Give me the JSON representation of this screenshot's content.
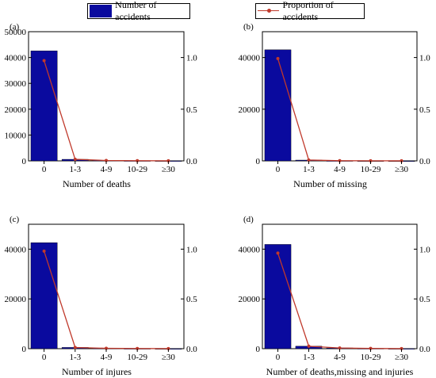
{
  "legend": {
    "bar_label": "Number of accidents",
    "line_label": "Proportion of accidents"
  },
  "colors": {
    "bar": "#0a0a9e",
    "line": "#c0392b"
  },
  "chart_data": [
    {
      "type": "bar",
      "panel": "(a)",
      "xlabel": "Number of  deaths",
      "categories": [
        "0",
        "1-3",
        "4-9",
        "10-29",
        "≥30"
      ],
      "series": [
        {
          "name": "Number of accidents",
          "axis": "left",
          "values": [
            42600,
            600,
            150,
            80,
            50
          ]
        },
        {
          "name": "Proportion of accidents",
          "axis": "right",
          "type": "line",
          "values": [
            0.97,
            0.015,
            0.004,
            0.002,
            0.001
          ]
        }
      ],
      "y_left": {
        "lim": [
          0,
          50000
        ],
        "ticks": [
          0,
          10000,
          20000,
          30000,
          40000,
          50000
        ]
      },
      "y_right": {
        "lim": [
          0,
          1.25
        ],
        "ticks": [
          "0.0",
          "0.5",
          "1.0"
        ]
      }
    },
    {
      "type": "bar",
      "panel": "(b)",
      "xlabel": "Number of missing",
      "categories": [
        "0",
        "1-3",
        "4-9",
        "10-29",
        "≥30"
      ],
      "series": [
        {
          "name": "Number of accidents",
          "axis": "left",
          "values": [
            43000,
            300,
            80,
            40,
            20
          ]
        },
        {
          "name": "Proportion of accidents",
          "axis": "right",
          "type": "line",
          "values": [
            0.99,
            0.008,
            0.002,
            0.001,
            0.0005
          ]
        }
      ],
      "y_left": {
        "lim": [
          0,
          50000
        ],
        "ticks": [
          0,
          20000,
          40000
        ]
      },
      "y_right": {
        "lim": [
          0,
          1.25
        ],
        "ticks": [
          "0.0",
          "0.5",
          "1.0"
        ]
      }
    },
    {
      "type": "bar",
      "panel": "(c)",
      "xlabel": "Number of injures",
      "categories": [
        "0",
        "1-3",
        "4-9",
        "10-29",
        "≥30"
      ],
      "series": [
        {
          "name": "Number of accidents",
          "axis": "left",
          "values": [
            42600,
            500,
            150,
            80,
            40
          ]
        },
        {
          "name": "Proportion of accidents",
          "axis": "right",
          "type": "line",
          "values": [
            0.98,
            0.012,
            0.004,
            0.002,
            0.001
          ]
        }
      ],
      "y_left": {
        "lim": [
          0,
          50000
        ],
        "ticks": [
          0,
          20000,
          40000
        ]
      },
      "y_right": {
        "lim": [
          0,
          1.25
        ],
        "ticks": [
          "0.0",
          "0.5",
          "1.0"
        ]
      }
    },
    {
      "type": "bar",
      "panel": "(d)",
      "xlabel": "Number of deaths,missing and injuries",
      "categories": [
        "0",
        "1-3",
        "4-9",
        "10-29",
        "≥30"
      ],
      "series": [
        {
          "name": "Number of accidents",
          "axis": "left",
          "values": [
            41900,
            1000,
            300,
            120,
            60
          ]
        },
        {
          "name": "Proportion of accidents",
          "axis": "right",
          "type": "line",
          "values": [
            0.96,
            0.025,
            0.007,
            0.003,
            0.001
          ]
        }
      ],
      "y_left": {
        "lim": [
          0,
          50000
        ],
        "ticks": [
          0,
          20000,
          40000
        ]
      },
      "y_right": {
        "lim": [
          0,
          1.25
        ],
        "ticks": [
          "0.0",
          "0.5",
          "1.0"
        ]
      }
    }
  ]
}
